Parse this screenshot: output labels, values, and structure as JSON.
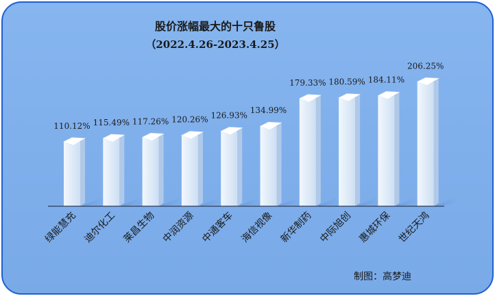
{
  "chart_data": {
    "type": "bar",
    "title": "股价涨幅最大的十只鲁股",
    "subtitle": "（2022.4.26-2023.4.25）",
    "categories": [
      "绿能慧充",
      "迪尔化工",
      "莱昌生物",
      "中润资源",
      "中通客车",
      "海信视像",
      "新华制药",
      "中际旭创",
      "惠城环保",
      "世纪天鸿"
    ],
    "values": [
      110.12,
      115.49,
      117.26,
      120.26,
      126.93,
      134.99,
      179.33,
      180.59,
      184.11,
      206.25
    ],
    "labels": [
      "110.12%",
      "115.49%",
      "117.26%",
      "120.26%",
      "126.93%",
      "134.99%",
      "179.33%",
      "180.59%",
      "184.11%",
      "206.25%"
    ],
    "unit": "%",
    "ylim": [
      0,
      225
    ],
    "grid": false,
    "legend": "none",
    "colors": {
      "background": "#7fb0ec",
      "border": "#1f5fd0",
      "bar_front": "#dce8f6",
      "bar_side": "#a9c3e6",
      "bar_top": "#ffffff"
    }
  },
  "footer": {
    "credit": "制图：高梦迪"
  }
}
